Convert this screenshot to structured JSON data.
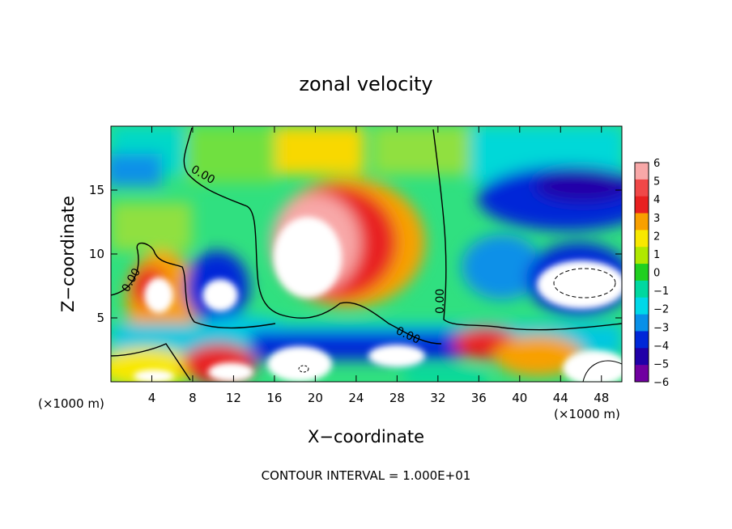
{
  "chart_data": {
    "type": "heatmap",
    "title": "zonal velocity",
    "xlabel": "X−coordinate",
    "ylabel": "Z−coordinate",
    "x_unit_left": "(×1000 m)",
    "x_unit_right": "(×1000 m)",
    "footer": "CONTOUR INTERVAL = 1.000E+01",
    "xlim": [
      0,
      50
    ],
    "ylim": [
      0,
      20
    ],
    "x_ticks": [
      4,
      8,
      12,
      16,
      20,
      24,
      28,
      32,
      36,
      40,
      44,
      48
    ],
    "y_ticks": [
      5,
      10,
      15
    ],
    "colorbar": {
      "levels": [
        6,
        5,
        4,
        3,
        2,
        1,
        0,
        -1,
        -2,
        -3,
        -4,
        -5,
        -6
      ],
      "labels": [
        "6",
        "5",
        "4",
        "3",
        "2",
        "1",
        "0",
        "−1",
        "−2",
        "−3",
        "−4",
        "−5",
        "−6"
      ],
      "colors": [
        "#f8a8a8",
        "#f04848",
        "#e82020",
        "#f8a000",
        "#f8e800",
        "#b0e800",
        "#20d020",
        "#00d8a0",
        "#00d8e8",
        "#0890e8",
        "#0028d8",
        "#2000a8",
        "#7000a0"
      ]
    },
    "zero_contour_label": "0.00",
    "features": [
      {
        "kind": "positive-max",
        "center": [
          20,
          10
        ],
        "value": 6
      },
      {
        "kind": "positive-max",
        "center": [
          4.5,
          6.8
        ],
        "value": 6
      },
      {
        "kind": "negative-min",
        "center": [
          45.5,
          8.5
        ],
        "value": -6
      },
      {
        "kind": "negative-min",
        "center": [
          10,
          6.8
        ],
        "value": -6
      },
      {
        "kind": "negative-min",
        "center": [
          47,
          16
        ],
        "value": -5
      },
      {
        "kind": "negative-min",
        "center": [
          1.5,
          16
        ],
        "value": -4
      },
      {
        "kind": "negative-min",
        "center": [
          20,
          1.5
        ],
        "value": -6
      },
      {
        "kind": "negative-min",
        "center": [
          28,
          2.2
        ],
        "value": -6
      }
    ]
  }
}
